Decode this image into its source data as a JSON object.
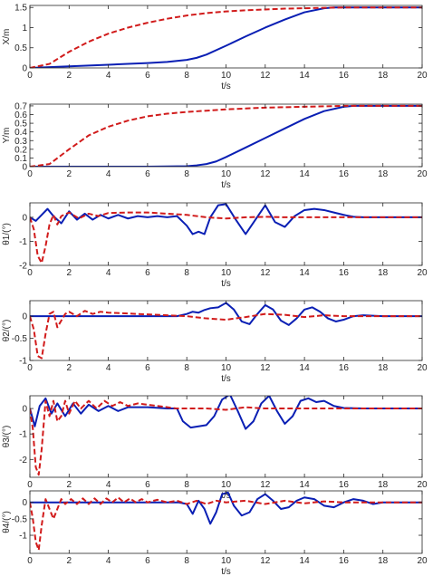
{
  "colors": {
    "blue": "#0a1fb4",
    "red": "#d11b1b",
    "axis": "#262626"
  },
  "chart_data": [
    {
      "type": "line",
      "ylabel": "X/m",
      "xlabel": "t/s",
      "xlim": [
        0,
        20
      ],
      "ylim": [
        0,
        1.55
      ],
      "xticks": [
        0,
        2,
        4,
        6,
        8,
        10,
        12,
        14,
        16,
        18,
        20
      ],
      "yticks": [
        0,
        0.5,
        1,
        1.5
      ],
      "series": [
        {
          "color": "#0a1fb4",
          "style": "solid",
          "x": [
            0,
            1,
            2,
            3,
            4,
            5,
            6,
            7,
            8,
            8.5,
            9,
            10,
            11,
            12,
            13,
            14,
            15,
            15.5,
            16,
            17,
            18,
            19,
            20
          ],
          "y": [
            0,
            0.02,
            0.04,
            0.06,
            0.08,
            0.1,
            0.12,
            0.15,
            0.2,
            0.25,
            0.33,
            0.55,
            0.78,
            1.0,
            1.2,
            1.38,
            1.48,
            1.5,
            1.5,
            1.5,
            1.5,
            1.5,
            1.5
          ]
        },
        {
          "color": "#d11b1b",
          "style": "dashed",
          "x": [
            0,
            1,
            2,
            3,
            4,
            5,
            6,
            7,
            8,
            9,
            10,
            11,
            12,
            13,
            14,
            15,
            16,
            17,
            18,
            19,
            20
          ],
          "y": [
            0,
            0.1,
            0.4,
            0.65,
            0.85,
            1.0,
            1.12,
            1.22,
            1.3,
            1.36,
            1.4,
            1.43,
            1.45,
            1.47,
            1.48,
            1.49,
            1.5,
            1.5,
            1.5,
            1.5,
            1.5
          ]
        }
      ]
    },
    {
      "type": "line",
      "ylabel": "Y/m",
      "xlabel": "t/s",
      "xlim": [
        0,
        20
      ],
      "ylim": [
        0,
        0.72
      ],
      "xticks": [
        0,
        2,
        4,
        6,
        8,
        10,
        12,
        14,
        16,
        18,
        20
      ],
      "yticks": [
        0,
        0.1,
        0.2,
        0.3,
        0.4,
        0.5,
        0.6,
        0.7
      ],
      "series": [
        {
          "color": "#0a1fb4",
          "style": "solid",
          "x": [
            0,
            2,
            4,
            6,
            8,
            8.5,
            9,
            9.5,
            10,
            11,
            12,
            13,
            14,
            15,
            16,
            16.5,
            17,
            18,
            19,
            20
          ],
          "y": [
            0,
            0,
            0,
            0,
            0.005,
            0.015,
            0.03,
            0.06,
            0.11,
            0.22,
            0.33,
            0.44,
            0.55,
            0.64,
            0.69,
            0.7,
            0.7,
            0.7,
            0.7,
            0.7
          ]
        },
        {
          "color": "#d11b1b",
          "style": "dashed",
          "x": [
            0,
            1,
            2,
            3,
            4,
            5,
            6,
            7,
            8,
            9,
            10,
            11,
            12,
            13,
            14,
            15,
            16,
            17,
            18,
            19,
            20
          ],
          "y": [
            0,
            0.03,
            0.2,
            0.36,
            0.46,
            0.53,
            0.58,
            0.61,
            0.63,
            0.645,
            0.66,
            0.67,
            0.68,
            0.685,
            0.69,
            0.695,
            0.7,
            0.7,
            0.7,
            0.7,
            0.7
          ]
        }
      ]
    },
    {
      "type": "line",
      "ylabel": "θ1/(°)",
      "xlabel": "t/s",
      "xlim": [
        0,
        20
      ],
      "ylim": [
        -2,
        0.6
      ],
      "xticks": [
        0,
        2,
        4,
        6,
        8,
        10,
        12,
        14,
        16,
        18,
        20
      ],
      "yticks": [
        -2,
        -1,
        0
      ],
      "series": [
        {
          "color": "#0a1fb4",
          "style": "solid",
          "x": [
            0,
            0.3,
            0.6,
            0.9,
            1.2,
            1.6,
            2.0,
            2.4,
            2.8,
            3.2,
            3.6,
            4,
            4.5,
            5,
            5.5,
            6,
            6.5,
            7,
            7.5,
            8,
            8.3,
            8.6,
            8.9,
            9.2,
            9.6,
            10,
            10.5,
            11,
            11.5,
            12,
            12.5,
            13,
            13.5,
            14,
            14.5,
            15,
            15.5,
            16,
            16.5,
            17,
            18,
            19,
            20
          ],
          "y": [
            0,
            -0.15,
            0.1,
            0.35,
            0.05,
            -0.25,
            0.25,
            -0.1,
            0.15,
            -0.1,
            0.1,
            -0.05,
            0.1,
            -0.05,
            0.05,
            0,
            0.05,
            0,
            0.05,
            -0.35,
            -0.7,
            -0.6,
            -0.7,
            0,
            0.5,
            0.55,
            -0.1,
            -0.7,
            -0.1,
            0.5,
            -0.2,
            -0.4,
            0.05,
            0.3,
            0.35,
            0.3,
            0.2,
            0.1,
            0.02,
            0,
            0,
            0,
            0
          ]
        },
        {
          "color": "#d11b1b",
          "style": "dashed",
          "x": [
            0,
            0.2,
            0.4,
            0.6,
            0.8,
            1.0,
            1.2,
            1.4,
            1.6,
            2,
            2.5,
            3,
            3.5,
            4,
            5,
            6,
            7,
            8,
            9,
            10,
            11,
            12,
            13,
            14,
            15,
            16,
            17,
            18,
            19,
            20
          ],
          "y": [
            0,
            -0.5,
            -1.6,
            -1.9,
            -1.2,
            -0.3,
            0.1,
            -0.3,
            0.05,
            0.2,
            -0.05,
            0.15,
            0.05,
            0.18,
            0.2,
            0.2,
            0.15,
            0.1,
            0,
            -0.05,
            0,
            0.02,
            0,
            0,
            0,
            0,
            0,
            0,
            0,
            0
          ]
        }
      ]
    },
    {
      "type": "line",
      "ylabel": "θ2/(°)",
      "xlabel": "t/s",
      "xlim": [
        0,
        20
      ],
      "ylim": [
        -1,
        0.35
      ],
      "xticks": [
        0,
        2,
        4,
        6,
        8,
        10,
        12,
        14,
        16,
        18,
        20
      ],
      "yticks": [
        -1,
        -0.5,
        0
      ],
      "series": [
        {
          "color": "#0a1fb4",
          "style": "solid",
          "x": [
            0,
            2,
            4,
            6,
            7.5,
            8,
            8.3,
            8.6,
            8.9,
            9.2,
            9.6,
            10,
            10.4,
            10.8,
            11.2,
            11.6,
            12,
            12.4,
            12.8,
            13.2,
            13.6,
            14,
            14.4,
            14.8,
            15.2,
            15.6,
            16,
            16.5,
            17,
            18,
            19,
            20
          ],
          "y": [
            0,
            0,
            0,
            0,
            0,
            0.05,
            0.1,
            0.08,
            0.14,
            0.18,
            0.2,
            0.3,
            0.15,
            -0.12,
            -0.18,
            0.05,
            0.25,
            0.15,
            -0.1,
            -0.2,
            -0.05,
            0.15,
            0.2,
            0.1,
            -0.05,
            -0.12,
            -0.08,
            0,
            0.02,
            0,
            0,
            0
          ]
        },
        {
          "color": "#d11b1b",
          "style": "dashed",
          "x": [
            0,
            0.2,
            0.4,
            0.6,
            0.8,
            1.0,
            1.2,
            1.4,
            1.6,
            1.8,
            2.0,
            2.4,
            2.8,
            3.2,
            3.6,
            4,
            5,
            6,
            7,
            8,
            9,
            10,
            11,
            12,
            13,
            14,
            15,
            16,
            17,
            18,
            19,
            20
          ],
          "y": [
            0,
            -0.3,
            -0.9,
            -0.95,
            -0.4,
            0.05,
            0.1,
            -0.25,
            -0.1,
            0.05,
            0.1,
            0,
            0.12,
            0.05,
            0.1,
            0.08,
            0.06,
            0.04,
            0.02,
            0,
            -0.05,
            -0.08,
            -0.02,
            0.05,
            0.03,
            -0.02,
            0.02,
            0,
            0,
            0,
            0,
            0
          ]
        }
      ]
    },
    {
      "type": "line",
      "ylabel": "θ3/(°)",
      "xlabel": "t/s",
      "xlim": [
        0,
        20
      ],
      "ylim": [
        -2.7,
        0.5
      ],
      "xticks": [
        0,
        2,
        4,
        6,
        8,
        10,
        12,
        14,
        16,
        18,
        20
      ],
      "yticks": [
        -2,
        -1,
        0
      ],
      "series": [
        {
          "color": "#0a1fb4",
          "style": "solid",
          "x": [
            0,
            0.25,
            0.5,
            0.8,
            1.1,
            1.4,
            1.8,
            2.2,
            2.6,
            3.0,
            3.5,
            4,
            4.5,
            5,
            6,
            7,
            7.5,
            7.8,
            8.2,
            8.6,
            9,
            9.4,
            9.8,
            10.2,
            10.6,
            11,
            11.4,
            11.8,
            12.2,
            12.6,
            13,
            13.4,
            13.8,
            14.2,
            14.6,
            15,
            15.5,
            16,
            17,
            18,
            19,
            20
          ],
          "y": [
            0,
            -0.7,
            0.1,
            0.4,
            -0.2,
            0.2,
            -0.3,
            0.2,
            -0.2,
            0.15,
            -0.1,
            0.1,
            -0.1,
            0.05,
            0.05,
            0,
            0,
            -0.5,
            -0.75,
            -0.7,
            -0.65,
            -0.3,
            0.35,
            0.55,
            -0.1,
            -0.8,
            -0.5,
            0.2,
            0.5,
            -0.1,
            -0.6,
            -0.3,
            0.3,
            0.4,
            0.25,
            0.3,
            0.1,
            0.02,
            0,
            0,
            0,
            0
          ]
        },
        {
          "color": "#d11b1b",
          "style": "dashed",
          "x": [
            0,
            0.15,
            0.3,
            0.45,
            0.6,
            0.8,
            1.0,
            1.2,
            1.4,
            1.6,
            1.8,
            2.0,
            2.3,
            2.6,
            3.0,
            3.4,
            3.8,
            4.2,
            4.6,
            5,
            5.5,
            6,
            6.5,
            7,
            7.5,
            8,
            9,
            10,
            11,
            12,
            13,
            14,
            15,
            16,
            17,
            18,
            19,
            20
          ],
          "y": [
            0,
            -0.8,
            -2.3,
            -2.6,
            -1.6,
            0.3,
            -0.3,
            0.3,
            -0.5,
            -0.3,
            0.3,
            -0.2,
            0.3,
            0,
            0.3,
            0,
            0.3,
            0.1,
            0.25,
            0.1,
            0.2,
            0.15,
            0.1,
            0.05,
            0,
            0,
            0,
            -0.05,
            0.05,
            0,
            0,
            0,
            0,
            0,
            0,
            0,
            0,
            0
          ]
        }
      ]
    },
    {
      "type": "line",
      "ylabel": "θ4/(°)",
      "xlabel": "t/s",
      "xlim": [
        0,
        20
      ],
      "ylim": [
        -1.55,
        0.35
      ],
      "xticks": [
        0,
        2,
        4,
        6,
        8,
        10,
        12,
        14,
        16,
        18,
        20
      ],
      "yticks": [
        -1,
        -0.5,
        0
      ],
      "series": [
        {
          "color": "#0a1fb4",
          "style": "solid",
          "x": [
            0,
            2,
            4,
            6,
            7,
            7.6,
            8.0,
            8.3,
            8.6,
            8.9,
            9.2,
            9.5,
            9.8,
            10.1,
            10.4,
            10.8,
            11.2,
            11.6,
            12,
            12.4,
            12.8,
            13.2,
            13.6,
            14,
            14.5,
            15,
            15.5,
            16,
            16.5,
            17,
            17.5,
            18,
            19,
            20
          ],
          "y": [
            0,
            0,
            0,
            0,
            0,
            0,
            -0.05,
            -0.35,
            0.05,
            -0.2,
            -0.65,
            -0.3,
            0.25,
            0.3,
            -0.1,
            -0.4,
            -0.3,
            0.1,
            0.25,
            0.05,
            -0.2,
            -0.15,
            0.05,
            0.15,
            0.1,
            -0.1,
            -0.15,
            0,
            0.1,
            0.05,
            -0.05,
            0,
            0,
            0
          ]
        },
        {
          "color": "#d11b1b",
          "style": "dashed",
          "x": [
            0,
            0.15,
            0.3,
            0.45,
            0.6,
            0.8,
            1.0,
            1.2,
            1.4,
            1.6,
            1.8,
            2.1,
            2.4,
            2.7,
            3.0,
            3.3,
            3.6,
            3.9,
            4.2,
            4.5,
            4.8,
            5.1,
            5.4,
            5.7,
            6,
            6.5,
            7,
            7.5,
            8,
            8.5,
            9,
            9.5,
            10,
            11,
            12,
            13,
            14,
            15,
            16,
            17,
            18,
            19,
            20
          ],
          "y": [
            0,
            -0.5,
            -1.2,
            -1.45,
            -0.7,
            0.1,
            -0.2,
            -0.5,
            -0.2,
            0.1,
            -0.05,
            0.1,
            -0.05,
            0.12,
            -0.05,
            0.12,
            -0.05,
            0.12,
            0,
            0.15,
            0,
            0.12,
            0,
            0.1,
            0,
            0.08,
            0,
            0.05,
            -0.05,
            0.05,
            -0.05,
            0.05,
            0,
            0.05,
            -0.05,
            0.05,
            -0.03,
            0.03,
            0,
            0,
            0,
            0,
            0
          ]
        }
      ]
    }
  ]
}
